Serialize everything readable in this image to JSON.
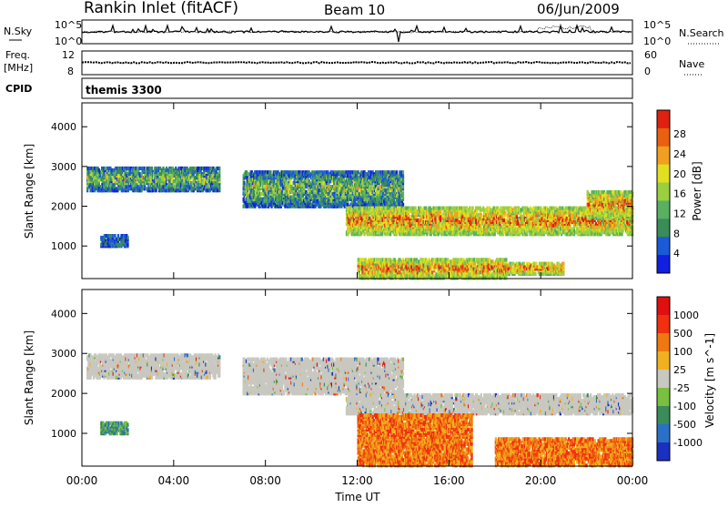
{
  "header": {
    "title": "Rankin Inlet (fitACF)",
    "beam": "Beam 10",
    "date": "06/Jun/2009"
  },
  "strip1": {
    "left_label": "N.Sky",
    "right_label": "N.Search",
    "ytick_top": "10^5",
    "ytick_bottom": "10^0",
    "rytick_top": "10^5",
    "rytick_bottom": "10^0"
  },
  "strip2": {
    "left_label_line1": "Freq.",
    "left_label_line2": "[MHz]",
    "right_label": "Nave",
    "ytick_top": "12",
    "ytick_bottom": "8",
    "rytick_top": "60",
    "rytick_bottom": "0"
  },
  "cpid": {
    "label": "CPID",
    "value": "themis 3300"
  },
  "time_axis": {
    "ticks": [
      "00:00",
      "04:00",
      "08:00",
      "12:00",
      "16:00",
      "20:00",
      "00:00"
    ],
    "xlabel": "Time UT"
  },
  "chart_data": [
    {
      "type": "heatmap",
      "ylabel": "Slant Range [km]",
      "yticks": [
        1000,
        2000,
        3000,
        4000
      ],
      "ylim": [
        180,
        4600
      ],
      "xlim_hours": [
        0,
        24
      ],
      "colorbar": {
        "label": "Power [dB]",
        "ticks": [
          "4",
          "8",
          "12",
          "16",
          "20",
          "24",
          "28"
        ],
        "colors": [
          "#1020e0",
          "#1a5ad8",
          "#3a8c58",
          "#58b060",
          "#9ad040",
          "#e0e020",
          "#f0a020",
          "#e86010",
          "#e02010"
        ]
      },
      "bands": [
        {
          "hours": [
            0.2,
            6.0
          ],
          "range_km": [
            2400,
            3000
          ],
          "level": "mixed"
        },
        {
          "hours": [
            7.0,
            14.0
          ],
          "range_km": [
            2000,
            2900
          ],
          "level": "mixed"
        },
        {
          "hours": [
            11.5,
            24.0
          ],
          "range_km": [
            1300,
            2000
          ],
          "level": "high"
        },
        {
          "hours": [
            22.0,
            24.0
          ],
          "range_km": [
            1700,
            2400
          ],
          "level": "high"
        },
        {
          "hours": [
            0.8,
            2.0
          ],
          "range_km": [
            1000,
            1300
          ],
          "level": "low"
        },
        {
          "hours": [
            12.0,
            18.5
          ],
          "range_km": [
            200,
            700
          ],
          "level": "high"
        },
        {
          "hours": [
            18.5,
            21.0
          ],
          "range_km": [
            300,
            600
          ],
          "level": "high"
        }
      ]
    },
    {
      "type": "heatmap",
      "ylabel": "Slant Range [km]",
      "yticks": [
        1000,
        2000,
        3000,
        4000
      ],
      "ylim": [
        180,
        4600
      ],
      "xlim_hours": [
        0,
        24
      ],
      "colorbar": {
        "label": "Velocity [m s^-1]",
        "ticks": [
          "1000",
          "500",
          "100",
          "25",
          "-25",
          "-100",
          "-500",
          "-1000"
        ],
        "colors": [
          "#1a30c0",
          "#2a70c8",
          "#3a8c58",
          "#7ac040",
          "#c8c8c0",
          "#f0b020",
          "#f07810",
          "#f03010",
          "#e01010"
        ]
      },
      "bands": [
        {
          "hours": [
            0.2,
            6.0
          ],
          "range_km": [
            2400,
            3000
          ],
          "level": "ground"
        },
        {
          "hours": [
            7.0,
            14.0
          ],
          "range_km": [
            2000,
            2900
          ],
          "level": "ground"
        },
        {
          "hours": [
            11.5,
            24.0
          ],
          "range_km": [
            1500,
            2000
          ],
          "level": "ground"
        },
        {
          "hours": [
            12.0,
            17.0
          ],
          "range_km": [
            200,
            1500
          ],
          "level": "away"
        },
        {
          "hours": [
            18.0,
            24.0
          ],
          "range_km": [
            200,
            900
          ],
          "level": "away"
        },
        {
          "hours": [
            0.8,
            2.0
          ],
          "range_km": [
            1000,
            1300
          ],
          "level": "toward"
        }
      ]
    }
  ]
}
